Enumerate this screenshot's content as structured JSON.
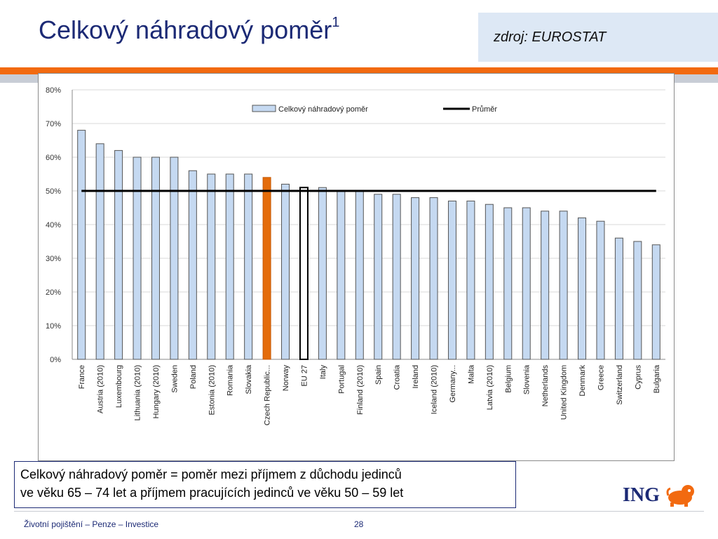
{
  "slide": {
    "title": "Celkový náhradový poměr",
    "title_sup": "1",
    "source": "zdroj: EUROSTAT",
    "definition_line1": "Celkový náhradový poměr = poměr mezi příjmem z důchodu jedinců",
    "definition_line2": "ve věku 65 – 74 let a příjmem pracujících jedinců ve věku 50 – 59 let",
    "logo_text": "ING",
    "logo_icon": "lion-icon",
    "footer_text": "Životní pojištění – Penze – Investice",
    "page_number": "28"
  },
  "chart_data": {
    "type": "bar",
    "title": "",
    "xlabel": "",
    "ylabel": "",
    "ylim": [
      0,
      80
    ],
    "yticks": [
      "0%",
      "10%",
      "20%",
      "30%",
      "40%",
      "50%",
      "60%",
      "70%",
      "80%"
    ],
    "grid": true,
    "legend_position": "top",
    "categories": [
      "France",
      "Austria (2010)",
      "Luxembourg",
      "Lithuania (2010)",
      "Hungary (2010)",
      "Sweden",
      "Poland",
      "Estonia (2010)",
      "Romania",
      "Slovakia",
      "Czech Republic...",
      "Norway",
      "EU 27",
      "Italy",
      "Portugal",
      "Finland (2010)",
      "Spain",
      "Croatia",
      "Ireland",
      "Iceland (2010)",
      "Germany...",
      "Malta",
      "Latvia (2010)",
      "Belgium",
      "Slovenia",
      "Netherlands",
      "United Kingdom",
      "Denmark",
      "Greece",
      "Switzerland",
      "Cyprus",
      "Bulgaria"
    ],
    "series": [
      {
        "name": "Celkový náhradový poměr",
        "values": [
          68,
          64,
          62,
          60,
          60,
          60,
          56,
          55,
          55,
          55,
          54,
          52,
          51,
          51,
          50,
          50,
          49,
          49,
          48,
          48,
          47,
          47,
          46,
          45,
          45,
          44,
          44,
          42,
          41,
          36,
          35,
          34
        ],
        "color": "#c5d9f1"
      },
      {
        "name": "Průměr",
        "type": "line",
        "value": 50,
        "color": "#000000"
      }
    ],
    "highlight": {
      "Czech Republic...": "#e46c0a",
      "EU 27": "#ffffff"
    }
  }
}
